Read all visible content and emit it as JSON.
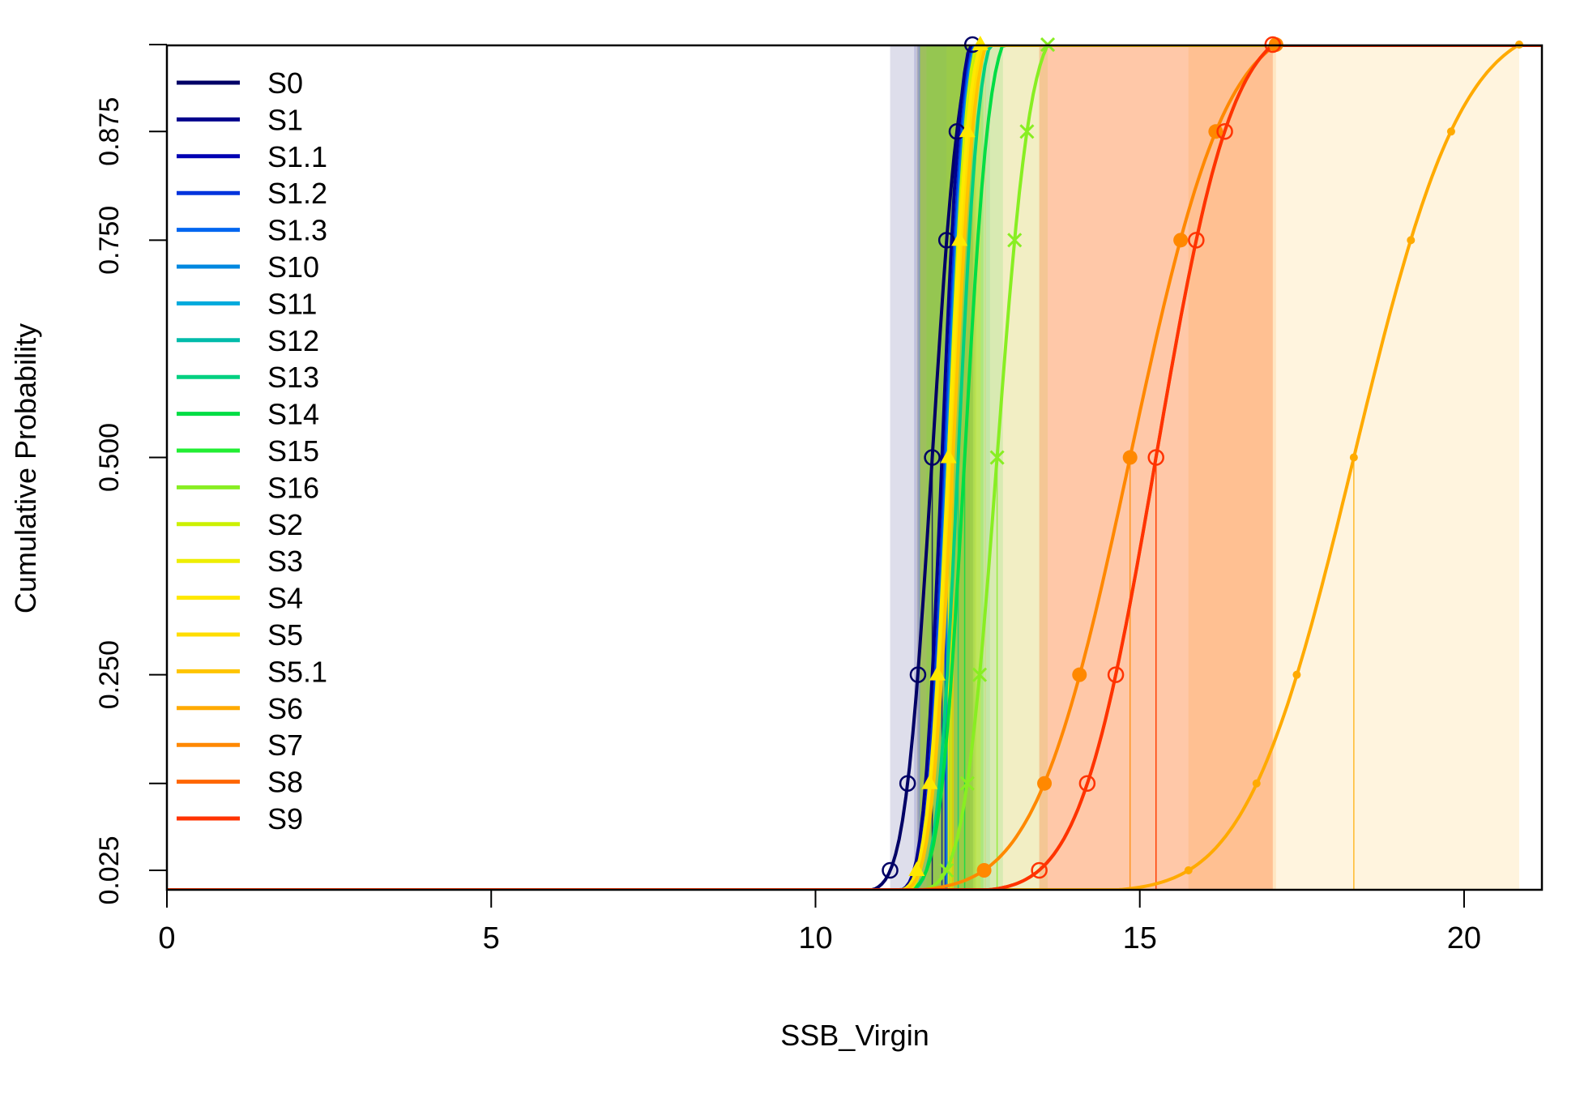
{
  "chart_data": {
    "type": "line",
    "subtype": "cumulative-distribution",
    "xlabel": "SSB_Virgin",
    "ylabel": "Cumulative Probability",
    "xlim": [
      0,
      21.2
    ],
    "ylim": [
      0,
      1
    ],
    "x_ticks": [
      {
        "value": 0,
        "label": "0"
      },
      {
        "value": 5,
        "label": "5"
      },
      {
        "value": 10,
        "label": "10"
      },
      {
        "value": 15,
        "label": "15"
      },
      {
        "value": 20,
        "label": "20"
      }
    ],
    "y_ticks": [
      {
        "value": 0.025,
        "label": "0.025"
      },
      {
        "value": 0.125,
        "label": ""
      },
      {
        "value": 0.25,
        "label": "0.250"
      },
      {
        "value": 0.5,
        "label": "0.500"
      },
      {
        "value": 0.75,
        "label": "0.750"
      },
      {
        "value": 0.875,
        "label": "0.875"
      },
      {
        "value": 0.975,
        "label": ""
      }
    ],
    "probability_levels": [
      0.025,
      0.125,
      0.25,
      0.5,
      0.75,
      0.875,
      0.975
    ],
    "legend_position": "top-left",
    "grid": false,
    "series": [
      {
        "name": "S0",
        "color": "#000066",
        "marker": "circle-open",
        "median": 11.8,
        "sd": 0.33,
        "x": [
          11.15,
          11.42,
          11.58,
          11.8,
          12.02,
          12.18,
          12.42
        ]
      },
      {
        "name": "S1",
        "color": "#00008C",
        "marker": "none",
        "median": 11.95,
        "sd": 0.22,
        "x": [
          11.52,
          11.7,
          11.8,
          11.95,
          12.1,
          12.2,
          12.38
        ]
      },
      {
        "name": "S1.1",
        "color": "#0000B3",
        "marker": "none",
        "median": 12.0,
        "sd": 0.22,
        "x": [
          11.57,
          11.75,
          11.85,
          12.0,
          12.15,
          12.25,
          12.43
        ]
      },
      {
        "name": "S1.2",
        "color": "#0033DD",
        "marker": "none",
        "median": 12.0,
        "sd": 0.22,
        "x": [
          11.57,
          11.75,
          11.85,
          12.0,
          12.15,
          12.25,
          12.43
        ]
      },
      {
        "name": "S1.3",
        "color": "#0066F0",
        "marker": "none",
        "median": 12.02,
        "sd": 0.22,
        "x": [
          11.59,
          11.77,
          11.87,
          12.02,
          12.17,
          12.27,
          12.45
        ]
      },
      {
        "name": "S10",
        "color": "#0088E0",
        "marker": "none",
        "median": 12.03,
        "sd": 0.22,
        "x": [
          11.6,
          11.78,
          11.88,
          12.03,
          12.18,
          12.28,
          12.46
        ]
      },
      {
        "name": "S11",
        "color": "#00AADD",
        "marker": "none",
        "median": 12.05,
        "sd": 0.22,
        "x": [
          11.62,
          11.8,
          11.9,
          12.05,
          12.2,
          12.3,
          12.48
        ]
      },
      {
        "name": "S12",
        "color": "#00BBAA",
        "marker": "none",
        "median": 12.1,
        "sd": 0.25,
        "x": [
          11.61,
          11.81,
          11.93,
          12.1,
          12.27,
          12.39,
          12.59
        ]
      },
      {
        "name": "S13",
        "color": "#00D080",
        "marker": "none",
        "median": 12.2,
        "sd": 0.25,
        "x": [
          11.71,
          11.91,
          12.03,
          12.2,
          12.37,
          12.49,
          12.69
        ]
      },
      {
        "name": "S14",
        "color": "#00DD44",
        "marker": "none",
        "median": 12.3,
        "sd": 0.3,
        "x": [
          11.71,
          11.95,
          12.1,
          12.3,
          12.5,
          12.65,
          12.89
        ]
      },
      {
        "name": "S15",
        "color": "#22EE33",
        "marker": "none",
        "median": 12.1,
        "sd": 0.25,
        "x": [
          11.61,
          11.81,
          11.93,
          12.1,
          12.27,
          12.39,
          12.59
        ]
      },
      {
        "name": "S16",
        "color": "#88EE22",
        "marker": "x",
        "median": 12.8,
        "sd": 0.4,
        "x": [
          12.02,
          12.34,
          12.53,
          12.8,
          13.07,
          13.26,
          13.58
        ]
      },
      {
        "name": "S2",
        "color": "#CCF000",
        "marker": "none",
        "median": 12.05,
        "sd": 0.22,
        "x": [
          11.62,
          11.8,
          11.9,
          12.05,
          12.2,
          12.3,
          12.48
        ]
      },
      {
        "name": "S3",
        "color": "#EEEE00",
        "marker": "none",
        "median": 12.08,
        "sd": 0.24,
        "x": [
          11.61,
          11.8,
          11.92,
          12.08,
          12.24,
          12.36,
          12.55
        ]
      },
      {
        "name": "S4",
        "color": "#FFE800",
        "marker": "triangle",
        "median": 12.05,
        "sd": 0.25,
        "x": [
          11.56,
          11.76,
          11.88,
          12.05,
          12.22,
          12.34,
          12.54
        ]
      },
      {
        "name": "S5",
        "color": "#FFDD00",
        "marker": "none",
        "median": 12.1,
        "sd": 0.25,
        "x": [
          11.61,
          11.81,
          11.93,
          12.1,
          12.27,
          12.39,
          12.59
        ]
      },
      {
        "name": "S5.1",
        "color": "#FFC400",
        "marker": "none",
        "median": 12.12,
        "sd": 0.26,
        "x": [
          11.61,
          11.82,
          11.94,
          12.12,
          12.3,
          12.42,
          12.63
        ]
      },
      {
        "name": "S6",
        "color": "#FFAA00",
        "marker": "dot",
        "median": 18.3,
        "sd": 1.3,
        "x": [
          15.75,
          16.8,
          17.42,
          18.3,
          19.18,
          19.8,
          20.85
        ]
      },
      {
        "name": "S7",
        "color": "#FF8800",
        "marker": "circle-filled",
        "median": 14.85,
        "sd": 1.15,
        "x": [
          12.6,
          13.53,
          14.07,
          14.85,
          15.63,
          16.17,
          17.1
        ]
      },
      {
        "name": "S8",
        "color": "#FF6600",
        "marker": "none",
        "median": 15.25,
        "sd": 0.92,
        "x": [
          13.45,
          14.19,
          14.63,
          15.25,
          15.87,
          16.31,
          17.05
        ]
      },
      {
        "name": "S9",
        "color": "#FF3300",
        "marker": "circle-open",
        "median": 15.25,
        "sd": 0.92,
        "x": [
          13.45,
          14.19,
          14.63,
          15.25,
          15.87,
          16.31,
          17.05
        ]
      }
    ]
  }
}
